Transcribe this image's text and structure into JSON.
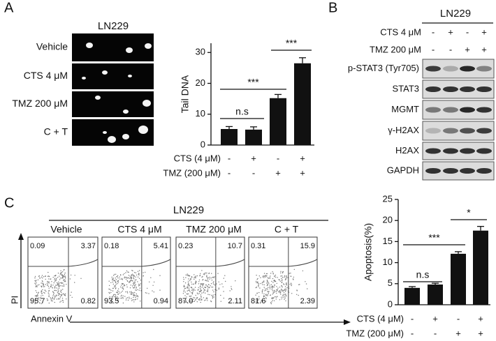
{
  "panels": {
    "a": "A",
    "b": "B",
    "c": "C"
  },
  "comet": {
    "title": "LN229",
    "rows": [
      "Vehicle",
      "CTS 4 μM",
      "TMZ 200 μM",
      "C + T"
    ]
  },
  "blot": {
    "title": "LN229",
    "conditions": [
      {
        "label": "CTS 4 μM",
        "signs": [
          "-",
          "+",
          "-",
          "+"
        ]
      },
      {
        "label": "TMZ 200 μM",
        "signs": [
          "-",
          "-",
          "+",
          "+"
        ]
      }
    ],
    "bands": [
      "p-STAT3 (Tyr705)",
      "STAT3",
      "MGMT",
      "γ-H2AX",
      "H2AX",
      "GAPDH"
    ]
  },
  "flow": {
    "title": "LN229",
    "y_label": "PI",
    "x_label": "Annexin V",
    "groups": [
      {
        "name": "Vehicle",
        "upper_left": "0.09",
        "upper_right": "3.37",
        "lower_left": "95.7",
        "lower_right": "0.82"
      },
      {
        "name": "CTS 4 μM",
        "upper_left": "0.18",
        "upper_right": "5.41",
        "lower_left": "93.5",
        "lower_right": "0.94"
      },
      {
        "name": "TMZ 200 μM",
        "upper_left": "0.23",
        "upper_right": "10.7",
        "lower_left": "87.0",
        "lower_right": "2.11"
      },
      {
        "name": "C + T",
        "upper_left": "0.31",
        "upper_right": "15.9",
        "lower_left": "81.6",
        "lower_right": "2.39"
      }
    ]
  },
  "chart_data": [
    {
      "type": "bar",
      "y_label": "Tail DNA",
      "values": [
        5.2,
        5.0,
        15.2,
        26.5
      ],
      "errors": [
        0.8,
        0.9,
        1.2,
        1.8
      ],
      "color": "#111111",
      "ylim": [
        0,
        33
      ],
      "yticks": [
        0,
        10,
        20,
        30
      ],
      "annotations": [
        "n.s",
        "***",
        "***"
      ],
      "treatments": [
        {
          "label": "CTS (4 μM)",
          "signs": [
            "-",
            "+",
            "-",
            "+"
          ]
        },
        {
          "label": "TMZ (200 μM)",
          "signs": [
            "-",
            "-",
            "+",
            "+"
          ]
        }
      ]
    },
    {
      "type": "bar",
      "y_label": "Apoptosis(%)",
      "values": [
        4.0,
        4.8,
        12.1,
        17.6
      ],
      "errors": [
        0.3,
        0.3,
        0.5,
        1.0
      ],
      "color": "#111111",
      "ylim": [
        0,
        25
      ],
      "yticks": [
        0,
        5,
        10,
        15,
        20,
        25
      ],
      "annotations": [
        "n.s",
        "***",
        "*"
      ],
      "treatments": [
        {
          "label": "CTS (4 μM)",
          "signs": [
            "-",
            "+",
            "-",
            "+"
          ]
        },
        {
          "label": "TMZ (200 μM)",
          "signs": [
            "-",
            "-",
            "+",
            "+"
          ]
        }
      ]
    }
  ]
}
